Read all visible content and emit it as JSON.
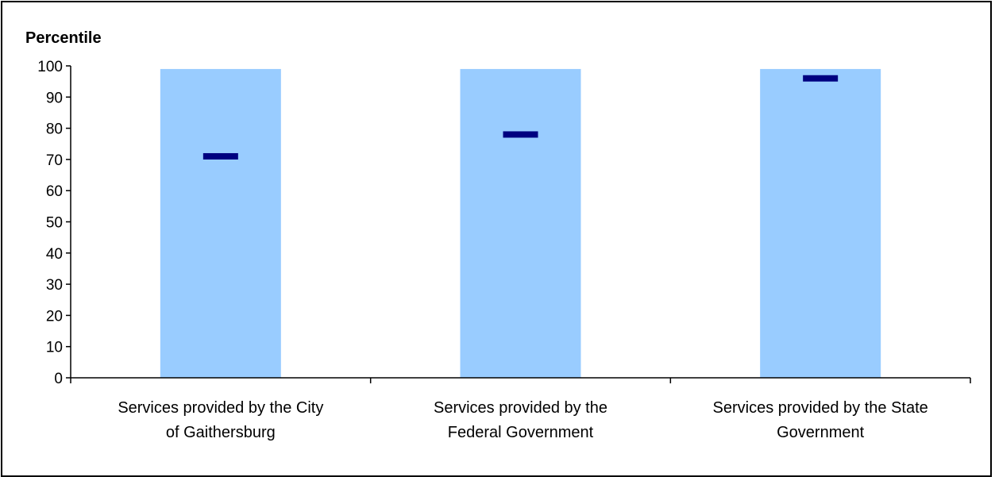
{
  "chart_data": {
    "type": "bar",
    "ylabel": "Percentile",
    "xlabel": "",
    "ylim": [
      0,
      100
    ],
    "yticks": [
      0,
      10,
      20,
      30,
      40,
      50,
      60,
      70,
      80,
      90,
      100
    ],
    "grid": false,
    "categories": [
      [
        "Services provided by the City",
        "of Gaithersburg"
      ],
      [
        "Services provided by the",
        "Federal Government"
      ],
      [
        "Services provided by the State",
        "Government"
      ]
    ],
    "series": [
      {
        "range_low": [
          0,
          0,
          0
        ],
        "range_high": [
          99,
          99,
          99
        ]
      },
      {
        "values": [
          71,
          78,
          96
        ]
      }
    ],
    "colors": {
      "range_bar": "#99ccff",
      "marker": "#000080",
      "axis": "#000000"
    }
  }
}
